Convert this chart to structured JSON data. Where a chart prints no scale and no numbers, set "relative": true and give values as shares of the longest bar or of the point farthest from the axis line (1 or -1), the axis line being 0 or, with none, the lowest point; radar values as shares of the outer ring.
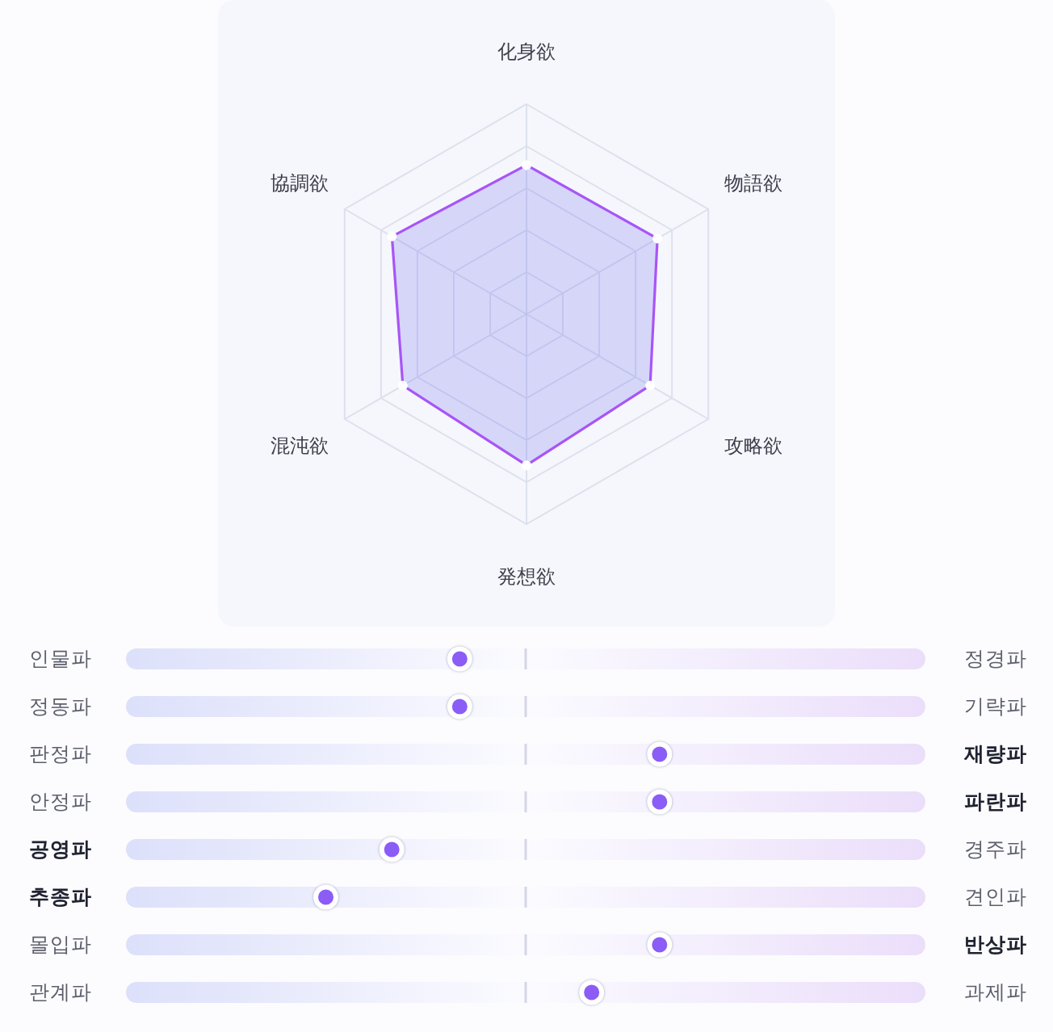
{
  "chart_data": [
    {
      "type": "radar",
      "relative": true,
      "grid": true,
      "marker": "circle",
      "categories": [
        "化身欲",
        "物語欲",
        "攻略欲",
        "発想欲",
        "混沌欲",
        "協調欲"
      ],
      "series": [
        {
          "color": "#a855f7",
          "values": [
            0.71,
            0.72,
            0.68,
            0.72,
            0.68,
            0.74
          ]
        }
      ]
    },
    {
      "type": "scatter",
      "relative": true,
      "orientation": "horizontal",
      "marker": "circle",
      "color": "#8b5cf6",
      "grid": "y",
      "ref_lines": [
        {
          "axis": "x",
          "value": 0
        }
      ],
      "categories": [
        "인물파",
        "정동파",
        "판정파",
        "안정파",
        "**공영파**",
        "**추종파**",
        "몰입파",
        "관계파"
      ],
      "y2_categories": [
        "정경파",
        "기략파",
        "**재량파**",
        "**파란파**",
        "경주파",
        "견인파",
        "**반상파**",
        "과제파"
      ],
      "values": [
        -0.33,
        -0.33,
        0.67,
        0.67,
        -0.67,
        -1,
        0.67,
        0.33
      ]
    }
  ]
}
